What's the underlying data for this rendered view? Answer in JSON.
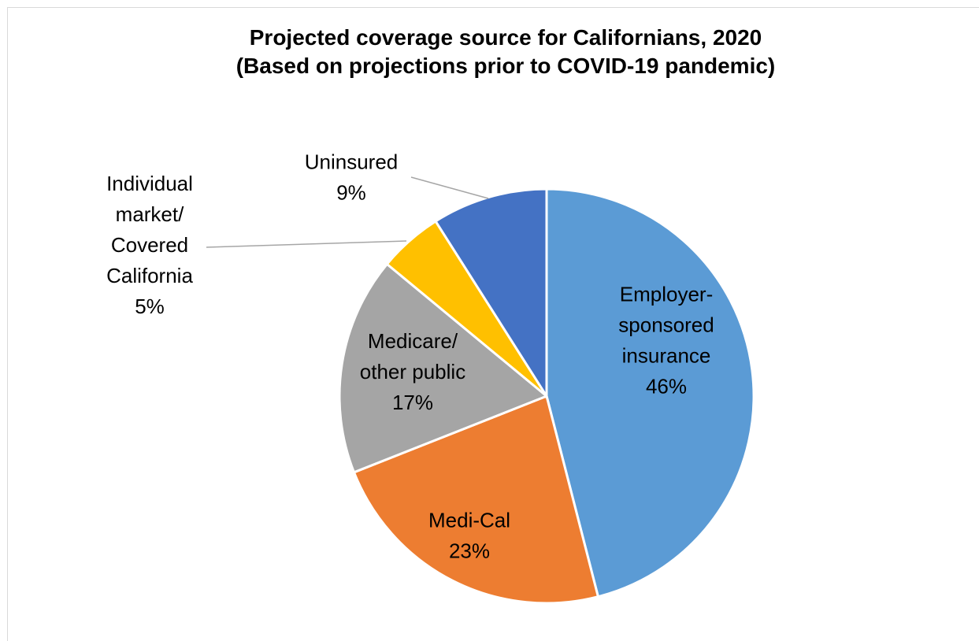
{
  "chart_data": {
    "type": "pie",
    "title": "Projected coverage source for Californians, 2020",
    "subtitle": "(Based on projections prior to COVID-19 pandemic)",
    "categories": [
      "Employer-sponsored insurance",
      "Medi-Cal",
      "Medicare/ other public",
      "Individual market/ Covered California",
      "Uninsured"
    ],
    "values": [
      46,
      23,
      17,
      5,
      9
    ],
    "unit": "%",
    "colors": [
      "#5B9BD5",
      "#ED7D31",
      "#A5A5A5",
      "#FFC000",
      "#4472C4"
    ],
    "labels": [
      {
        "lines": [
          "Employer-",
          "sponsored",
          "insurance",
          "46%"
        ]
      },
      {
        "lines": [
          "Medi-Cal",
          "23%"
        ]
      },
      {
        "lines": [
          "Medicare/",
          "other public",
          "17%"
        ]
      },
      {
        "lines": [
          "Individual",
          "market/",
          "Covered",
          "California",
          "5%"
        ]
      },
      {
        "lines": [
          "Uninsured",
          "9%"
        ]
      }
    ],
    "legend": "none"
  }
}
